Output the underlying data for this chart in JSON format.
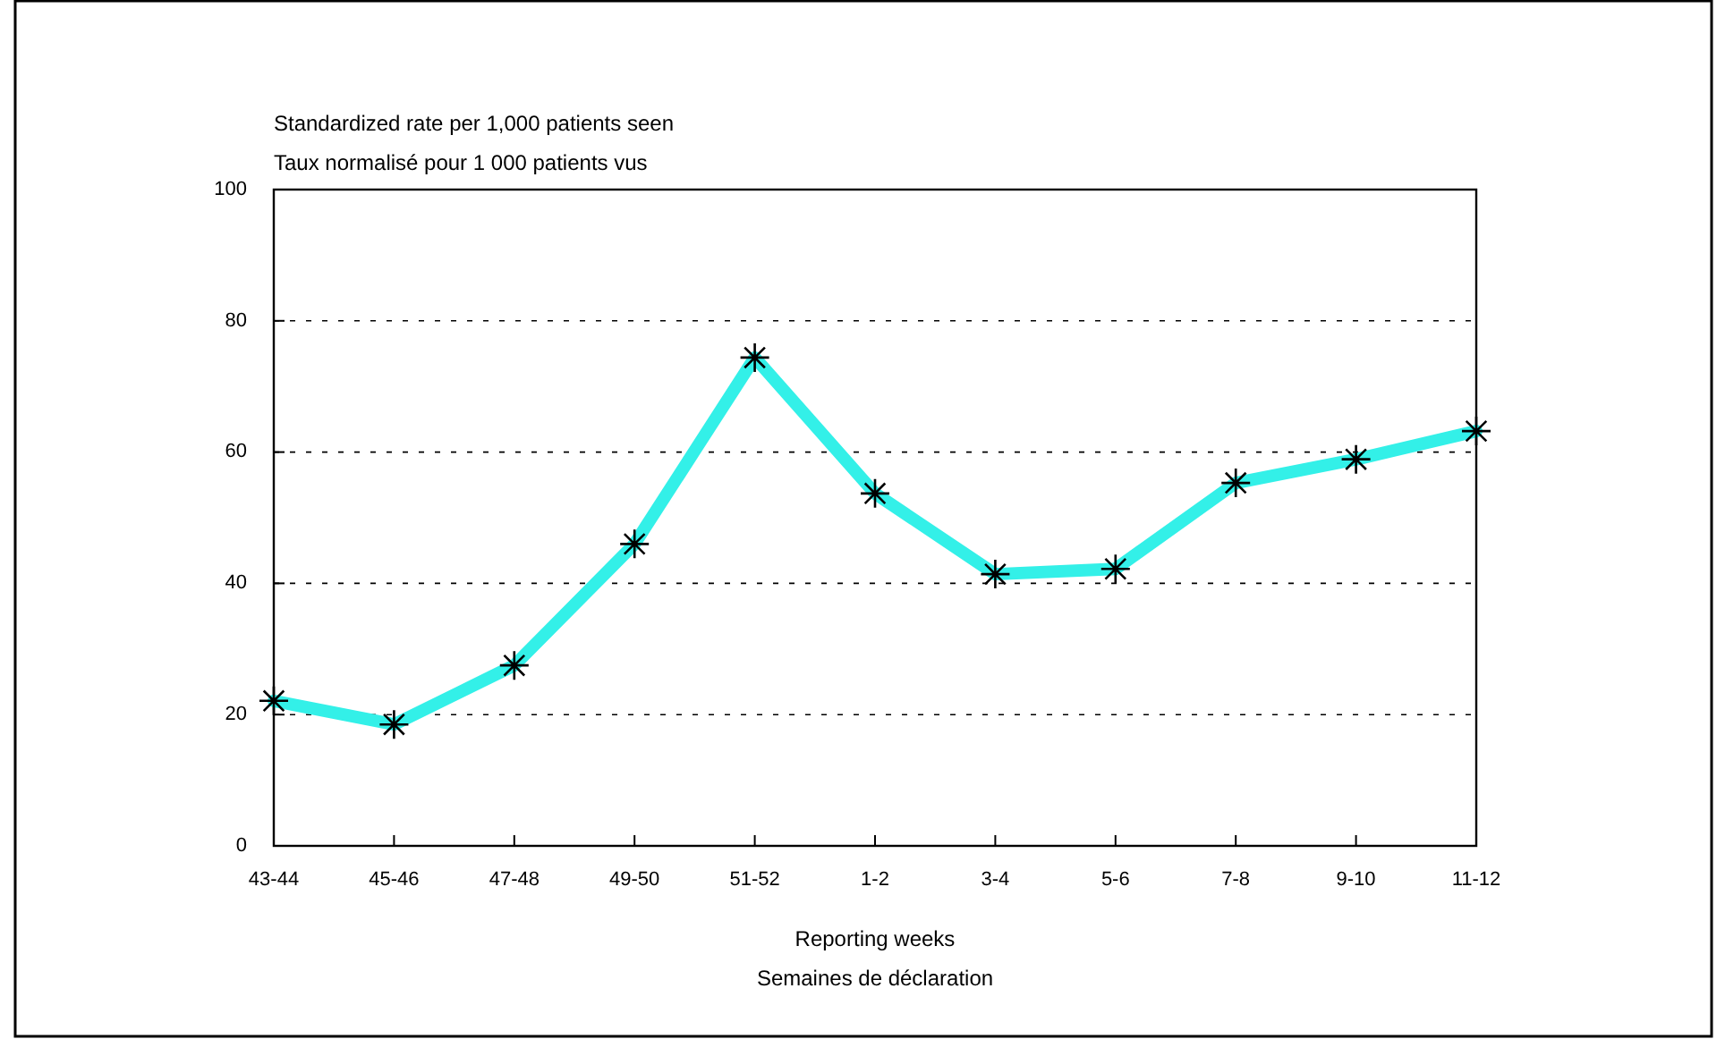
{
  "chart_data": {
    "type": "line",
    "ylabel": "Standardized rate per 1,000 patients seen\nTaux normalisé pour 1 000 patients vus",
    "xlabel": "Reporting weeks\nSemaines de déclaration",
    "categories": [
      "43-44",
      "45-46",
      "47-48",
      "49-50",
      "51-52",
      "1-2",
      "3-4",
      "5-6",
      "7-8",
      "9-10",
      "11-12"
    ],
    "series": [
      {
        "color": "#33f0e8",
        "values": [
          22.1,
          18.5,
          27.5,
          46,
          74.4,
          53.7,
          41.4,
          42.2,
          55.3,
          58.9,
          63.2
        ]
      }
    ],
    "ylim": [
      0,
      100
    ],
    "yticks": [
      0,
      20,
      40,
      60,
      80,
      100
    ],
    "grid": "y",
    "marker": "cross",
    "line_style": "solid"
  }
}
